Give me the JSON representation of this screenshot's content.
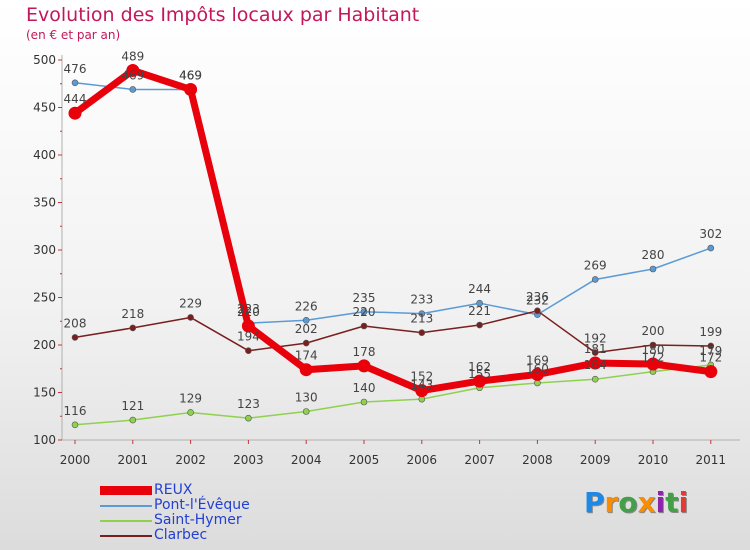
{
  "header": {
    "title": "Evolution des Impôts locaux par Habitant",
    "subtitle": "(en € et par an)"
  },
  "logo": {
    "text": "Proxiti"
  },
  "chart_data": {
    "type": "line",
    "title": "Evolution des Impôts locaux par Habitant",
    "subtitle": "(en € et par an)",
    "xlabel": "",
    "ylabel": "",
    "x": [
      "2000",
      "2001",
      "2002",
      "2003",
      "2004",
      "2005",
      "2006",
      "2007",
      "2008",
      "2009",
      "2010",
      "2011"
    ],
    "ylim": [
      100,
      500
    ],
    "yticks": [
      100,
      150,
      200,
      250,
      300,
      350,
      400,
      450,
      500
    ],
    "grid": false,
    "legend_position": "bottom-left",
    "series": [
      {
        "name": "REUX",
        "color": "#e8000b",
        "width": 7,
        "values": [
          444,
          489,
          469,
          220,
          174,
          178,
          152,
          162,
          169,
          181,
          180,
          172
        ]
      },
      {
        "name": "Pont-l'Évêque",
        "color": "#5b9bd5",
        "width": 1.5,
        "values": [
          476,
          469,
          469,
          223,
          226,
          235,
          233,
          244,
          232,
          269,
          280,
          302
        ]
      },
      {
        "name": "Saint-Hymer",
        "color": "#8fd14f",
        "width": 1.5,
        "values": [
          116,
          121,
          129,
          123,
          130,
          140,
          143,
          155,
          160,
          164,
          172,
          179
        ]
      },
      {
        "name": "Clarbec",
        "color": "#7a1f1f",
        "width": 1.5,
        "values": [
          208,
          218,
          229,
          194,
          202,
          220,
          213,
          221,
          236,
          192,
          200,
          199
        ]
      }
    ]
  }
}
